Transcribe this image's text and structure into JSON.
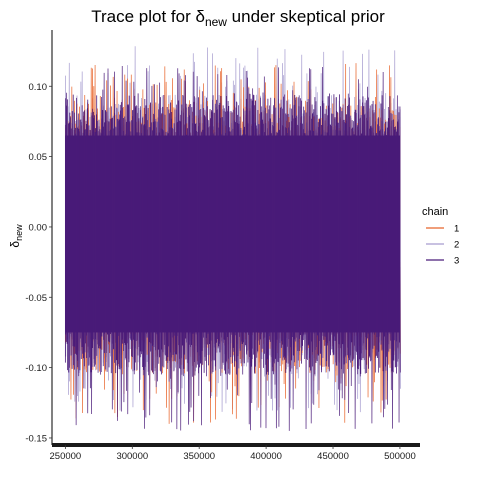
{
  "chart_data": {
    "type": "line",
    "title": {
      "prefix": "Trace plot for ",
      "symbol": "δ",
      "subscript": "new",
      "suffix": " under skeptical prior"
    },
    "ylabel": {
      "symbol": "δ",
      "subscript": "new"
    },
    "xlabel": "",
    "xlim": [
      240000,
      515000
    ],
    "ylim": [
      -0.155,
      0.14
    ],
    "x_ticks": [
      250000,
      300000,
      350000,
      400000,
      450000,
      500000
    ],
    "x_tick_labels": [
      "250000",
      "300000",
      "350000",
      "400000",
      "450000",
      "500000"
    ],
    "y_ticks": [
      0.1,
      0.05,
      0.0,
      -0.05,
      -0.1,
      -0.15
    ],
    "y_tick_labels": [
      "0.10",
      "0.05",
      "0.00",
      "-0.05",
      "-0.10",
      "-0.15"
    ],
    "grid": false,
    "legend": {
      "title": "chain",
      "position": "right",
      "entries": [
        {
          "label": "1",
          "color": "#e8642a"
        },
        {
          "label": "2",
          "color": "#a69ccf"
        },
        {
          "label": "3",
          "color": "#4b1c7a"
        }
      ]
    },
    "series": [
      {
        "name": "1",
        "color": "#e8642a",
        "x_range": [
          250000,
          500000
        ],
        "band": [
          -0.075,
          0.065
        ],
        "max": 0.117,
        "min": -0.14
      },
      {
        "name": "2",
        "color": "#a69ccf",
        "x_range": [
          250000,
          500000
        ],
        "band": [
          -0.075,
          0.065
        ],
        "max": 0.13,
        "min": -0.135
      },
      {
        "name": "3",
        "color": "#4b1c7a",
        "x_range": [
          250000,
          500000
        ],
        "band": [
          -0.075,
          0.065
        ],
        "max": 0.115,
        "min": -0.145
      }
    ],
    "band_color": "#431874"
  }
}
